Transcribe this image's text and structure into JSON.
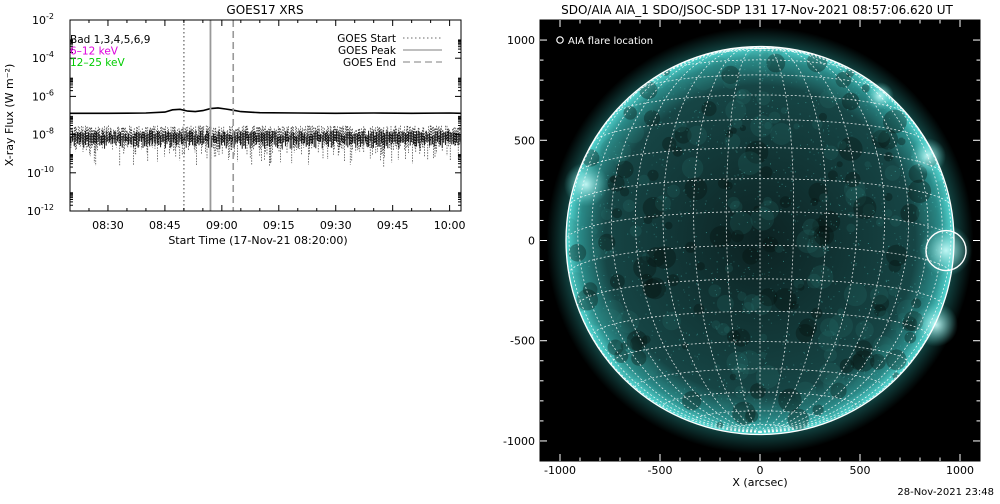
{
  "footer_timestamp": "28-Nov-2021 23:48",
  "chart_data": [
    {
      "type": "line",
      "title": "GOES17 XRS",
      "xlabel": "Start Time (17-Nov-21 08:20:00)",
      "ylabel": "X-ray Flux (W m⁻²)",
      "y_scale": "log",
      "ylim": [
        1e-12,
        0.01
      ],
      "y_ticks": [
        {
          "value": 0.01,
          "base": "10",
          "exp": "-2"
        },
        {
          "value": 0.0001,
          "base": "10",
          "exp": "-4"
        },
        {
          "value": 1e-06,
          "base": "10",
          "exp": "-6"
        },
        {
          "value": 1e-08,
          "base": "10",
          "exp": "-8"
        },
        {
          "value": 1e-10,
          "base": "10",
          "exp": "-10"
        },
        {
          "value": 1e-12,
          "base": "10",
          "exp": "-12"
        }
      ],
      "xlim_minutes_after_0800": [
        20,
        123
      ],
      "x_ticks": [
        {
          "label": "08:30",
          "minutes": 30
        },
        {
          "label": "08:45",
          "minutes": 45
        },
        {
          "label": "09:00",
          "minutes": 60
        },
        {
          "label": "09:15",
          "minutes": 75
        },
        {
          "label": "09:30",
          "minutes": 90
        },
        {
          "label": "09:45",
          "minutes": 105
        },
        {
          "label": "10:00",
          "minutes": 120
        }
      ],
      "legend_placement": "top-left",
      "legend_entries": [
        {
          "label": "Bad 1,3,4,5,6,9",
          "color": "#000000"
        },
        {
          "label": "6–12 keV",
          "color": "#dd00dd"
        },
        {
          "label": "12–25 keV",
          "color": "#00cc00"
        }
      ],
      "events_legend_placement": "top-right",
      "events": [
        {
          "label": "GOES Start",
          "time": "08:50",
          "minutes": 50,
          "style": "dotted",
          "color": "#888888"
        },
        {
          "label": "GOES Peak",
          "time": "08:57",
          "minutes": 57,
          "style": "solid",
          "color": "#999999"
        },
        {
          "label": "GOES End",
          "time": "09:03",
          "minutes": 63,
          "style": "dashed",
          "color": "#999999"
        }
      ],
      "series": [
        {
          "name": "long channel",
          "color": "#000000",
          "x_minutes": [
            20,
            30,
            40,
            45,
            47,
            49,
            51,
            53,
            55,
            57,
            59,
            61,
            63,
            65,
            70,
            80,
            90,
            100,
            110,
            120,
            123
          ],
          "values": [
            1.3e-07,
            1.3e-07,
            1.35e-07,
            1.5e-07,
            2e-07,
            2.1e-07,
            1.7e-07,
            1.6e-07,
            1.8e-07,
            2.3e-07,
            2.5e-07,
            2.2e-07,
            1.9e-07,
            1.6e-07,
            1.4e-07,
            1.35e-07,
            1.3e-07,
            1.35e-07,
            1.3e-07,
            1.35e-07,
            1.3e-07
          ]
        },
        {
          "name": "short channel",
          "color": "#000000",
          "style": "noisy",
          "noise_range": [
            2e-10,
            3e-08
          ],
          "typical_value": 1e-08
        }
      ]
    },
    {
      "type": "image",
      "title": "SDO/AIA AIA_1 SDO/JSOC-SDP 131 17-Nov-2021 08:57:06.620 UT",
      "xlabel": "X (arcsec)",
      "ylabel": "",
      "xlim": [
        -1100,
        1100
      ],
      "ylim": [
        -1100,
        1100
      ],
      "x_ticks": [
        -1000,
        -500,
        0,
        500,
        1000
      ],
      "y_ticks": [
        -1000,
        -500,
        0,
        500,
        1000
      ],
      "legend_placement": "top-left",
      "legend_entries": [
        {
          "label": "AIA flare location",
          "marker": "circle",
          "color": "#ffffff"
        }
      ],
      "solar_radius_arcsec": 970,
      "grid": true,
      "flare_location": {
        "x": 930,
        "y": -50,
        "radius": 100
      },
      "colors": {
        "background": "#000000",
        "disk": "#0f2a2a",
        "limb": "#2fc5c0",
        "grid": "#ffffff"
      }
    }
  ]
}
